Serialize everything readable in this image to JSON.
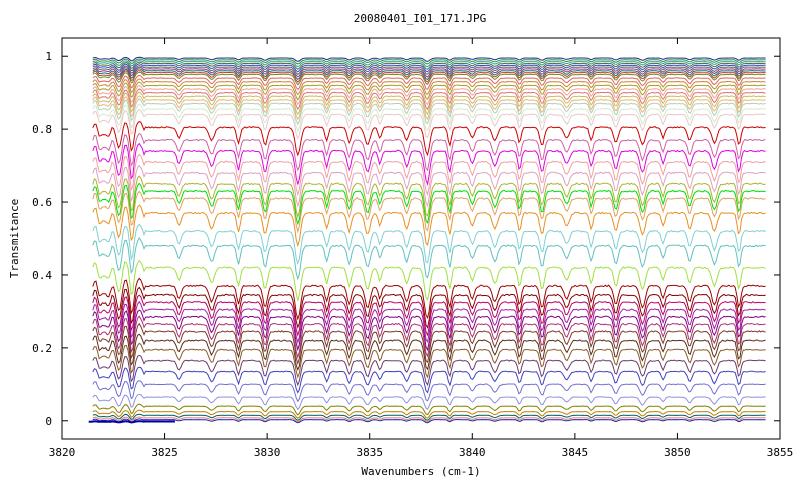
{
  "chart_data": {
    "type": "line",
    "title": "20080401_I01_171.JPG",
    "xlabel": "Wavenumbers (cm-1)",
    "ylabel": "Transmitance",
    "xlim": [
      3820,
      3855
    ],
    "ylim": [
      -0.05,
      1.05
    ],
    "x_ticks": [
      3820,
      3825,
      3830,
      3835,
      3840,
      3845,
      3850,
      3855
    ],
    "y_ticks": [
      0,
      0.2,
      0.4,
      0.6,
      0.8,
      1
    ],
    "y_tick_labels": [
      "0",
      "0.2",
      "0.4",
      "0.6",
      "0.8",
      "1"
    ],
    "x_range_of_data": [
      3821.5,
      3854.3
    ],
    "absorption_lines": [
      3821.8,
      3822.3,
      3822.8,
      3823.4,
      3825.7,
      3827.3,
      3828.6,
      3829.9,
      3831.5,
      3832.9,
      3834.0,
      3834.9,
      3835.5,
      3836.8,
      3837.8,
      3838.9,
      3840.0,
      3841.1,
      3842.3,
      3843.4,
      3844.6,
      3845.8,
      3847.0,
      3848.3,
      3849.3,
      3850.6,
      3851.8,
      3853.0
    ],
    "strong_lines": [
      3831.5,
      3837.8
    ],
    "grid": false,
    "legend": "none",
    "series": [
      {
        "level": 0.995,
        "color": "#1a2a8a"
      },
      {
        "level": 0.99,
        "color": "#2f8f2f"
      },
      {
        "level": 0.985,
        "color": "#20a0a0"
      },
      {
        "level": 0.98,
        "color": "#5a6a3a"
      },
      {
        "level": 0.975,
        "color": "#3050c0"
      },
      {
        "level": 0.97,
        "color": "#606060"
      },
      {
        "level": 0.965,
        "color": "#8a3a8a"
      },
      {
        "level": 0.96,
        "color": "#2a6a6a"
      },
      {
        "level": 0.955,
        "color": "#c04040"
      },
      {
        "level": 0.95,
        "color": "#6b8e23"
      },
      {
        "level": 0.94,
        "color": "#e06060"
      },
      {
        "level": 0.93,
        "color": "#d08040"
      },
      {
        "level": 0.92,
        "color": "#a0a020"
      },
      {
        "level": 0.91,
        "color": "#f0a0a0"
      },
      {
        "level": 0.9,
        "color": "#e07070"
      },
      {
        "level": 0.89,
        "color": "#c0c060"
      },
      {
        "level": 0.88,
        "color": "#f0b080"
      },
      {
        "level": 0.87,
        "color": "#b0d0b0"
      },
      {
        "level": 0.855,
        "color": "#d8e8d0"
      },
      {
        "level": 0.84,
        "color": "#e8c8c8"
      },
      {
        "level": 0.805,
        "color": "#cc0000"
      },
      {
        "level": 0.77,
        "color": "#d060a0"
      },
      {
        "level": 0.74,
        "color": "#e000e0"
      },
      {
        "level": 0.71,
        "color": "#f0a0a0"
      },
      {
        "level": 0.68,
        "color": "#e0a0c0"
      },
      {
        "level": 0.65,
        "color": "#b0b030"
      },
      {
        "level": 0.63,
        "color": "#00dd00"
      },
      {
        "level": 0.61,
        "color": "#e0a060"
      },
      {
        "level": 0.57,
        "color": "#e89020"
      },
      {
        "level": 0.52,
        "color": "#80d0d0"
      },
      {
        "level": 0.48,
        "color": "#60c0c0"
      },
      {
        "level": 0.42,
        "color": "#a0e040"
      },
      {
        "level": 0.37,
        "color": "#a00000"
      },
      {
        "level": 0.345,
        "color": "#800000"
      },
      {
        "level": 0.325,
        "color": "#c00060"
      },
      {
        "level": 0.305,
        "color": "#a020a0"
      },
      {
        "level": 0.285,
        "color": "#800080"
      },
      {
        "level": 0.265,
        "color": "#b03070"
      },
      {
        "level": 0.245,
        "color": "#7a3a2a"
      },
      {
        "level": 0.22,
        "color": "#5a2a1a"
      },
      {
        "level": 0.195,
        "color": "#8a5a2a"
      },
      {
        "level": 0.165,
        "color": "#6a3a6a"
      },
      {
        "level": 0.135,
        "color": "#4040c0"
      },
      {
        "level": 0.1,
        "color": "#7070d0"
      },
      {
        "level": 0.065,
        "color": "#9090e0"
      },
      {
        "level": 0.04,
        "color": "#808000"
      },
      {
        "level": 0.025,
        "color": "#c08000"
      },
      {
        "level": 0.015,
        "color": "#006060"
      },
      {
        "level": 0.008,
        "color": "#e08080"
      },
      {
        "level": 0.003,
        "color": "#2020a0"
      }
    ],
    "partial_series": {
      "color": "#0000aa",
      "level": -0.002,
      "x_range": [
        3821.3,
        3825.5
      ]
    }
  }
}
